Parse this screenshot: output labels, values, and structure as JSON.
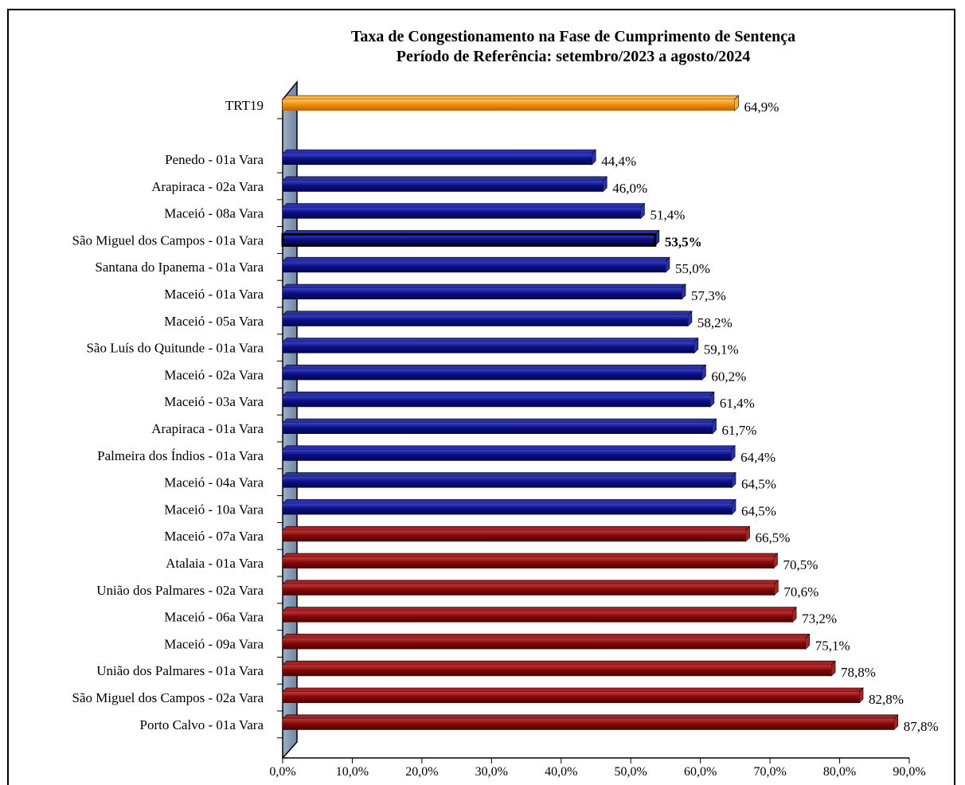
{
  "chart_data": {
    "type": "bar",
    "orientation": "horizontal",
    "title": "Taxa de Congestionamento na Fase de Cumprimento de Sentença",
    "subtitle": "Período de Referência: setembro/2023 a agosto/2024",
    "xlim": [
      0,
      90
    ],
    "x_ticks": [
      "0,0%",
      "10,0%",
      "20,0%",
      "30,0%",
      "40,0%",
      "50,0%",
      "60,0%",
      "70,0%",
      "80,0%",
      "90,0%"
    ],
    "colors": {
      "total": "#f0900c",
      "below_total": "#0a0f82",
      "above_total": "#840808",
      "highlight_border": "#000000"
    },
    "total_bar": {
      "category": "TRT19",
      "value": 64.9,
      "label": "64,9%"
    },
    "categories": [
      "Penedo  - 01a Vara",
      "Arapiraca  - 02a Vara",
      "Maceió  - 08a Vara",
      "São Miguel dos Campos  - 01a Vara",
      "Santana do Ipanema  - 01a Vara",
      "Maceió  - 01a Vara",
      "Maceió  - 05a Vara",
      "São Luís do Quitunde  - 01a Vara",
      "Maceió  - 02a Vara",
      "Maceió  - 03a Vara",
      "Arapiraca  - 01a Vara",
      "Palmeira dos Índios  - 01a Vara",
      "Maceió  - 04a Vara",
      "Maceió  - 10a Vara",
      "Maceió  - 07a Vara",
      "Atalaia  - 01a Vara",
      "União dos Palmares  - 02a Vara",
      "Maceió  - 06a Vara",
      "Maceió  - 09a Vara",
      "União dos Palmares  - 01a Vara",
      "São Miguel dos Campos  - 02a Vara",
      "Porto Calvo  - 01a Vara"
    ],
    "values": [
      44.4,
      46.0,
      51.4,
      53.5,
      55.0,
      57.3,
      58.2,
      59.1,
      60.2,
      61.4,
      61.7,
      64.4,
      64.5,
      64.5,
      66.5,
      70.5,
      70.6,
      73.2,
      75.1,
      78.8,
      82.8,
      87.8
    ],
    "labels": [
      "44,4%",
      "46,0%",
      "51,4%",
      "53,5%",
      "55,0%",
      "57,3%",
      "58,2%",
      "59,1%",
      "60,2%",
      "61,4%",
      "61,7%",
      "64,4%",
      "64,5%",
      "64,5%",
      "66,5%",
      "70,5%",
      "70,6%",
      "73,2%",
      "75,1%",
      "78,8%",
      "82,8%",
      "87,8%"
    ],
    "highlight_category": "São Miguel dos Campos  - 01a Vara"
  }
}
